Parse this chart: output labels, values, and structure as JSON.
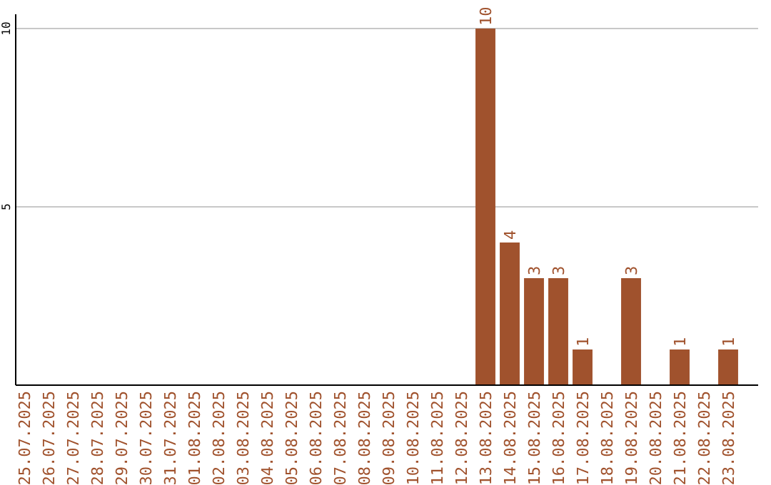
{
  "chart_data": {
    "type": "bar",
    "categories": [
      "25.07.2025",
      "26.07.2025",
      "27.07.2025",
      "28.07.2025",
      "29.07.2025",
      "30.07.2025",
      "31.07.2025",
      "01.08.2025",
      "02.08.2025",
      "03.08.2025",
      "04.08.2025",
      "05.08.2025",
      "06.08.2025",
      "07.08.2025",
      "08.08.2025",
      "09.08.2025",
      "10.08.2025",
      "11.08.2025",
      "12.08.2025",
      "13.08.2025",
      "14.08.2025",
      "15.08.2025",
      "16.08.2025",
      "17.08.2025",
      "18.08.2025",
      "19.08.2025",
      "20.08.2025",
      "21.08.2025",
      "22.08.2025",
      "23.08.2025"
    ],
    "values": [
      0,
      0,
      0,
      0,
      0,
      0,
      0,
      0,
      0,
      0,
      0,
      0,
      0,
      0,
      0,
      0,
      0,
      0,
      0,
      10,
      4,
      3,
      3,
      1,
      0,
      3,
      0,
      1,
      0,
      1
    ],
    "value_labels": [
      null,
      null,
      null,
      null,
      null,
      null,
      null,
      null,
      null,
      null,
      null,
      null,
      null,
      null,
      null,
      null,
      null,
      null,
      null,
      "10",
      "4",
      "3",
      "3",
      "1",
      null,
      "3",
      null,
      "1",
      null,
      "1"
    ],
    "color": "#a0522d",
    "ylim": [
      0,
      10
    ],
    "yticks": [
      5,
      10
    ],
    "grid": "y"
  }
}
